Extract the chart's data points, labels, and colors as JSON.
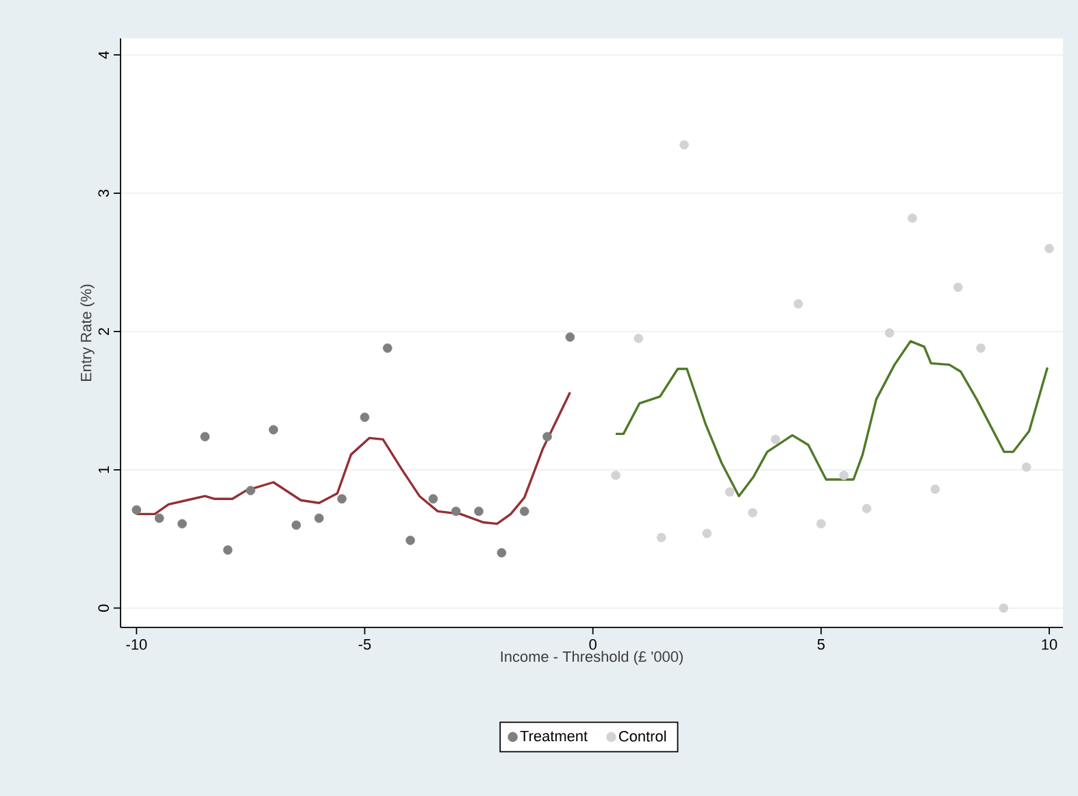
{
  "chart_data": {
    "type": "scatter",
    "xlabel": "Income - Threshold (£ '000)",
    "ylabel": "Entry Rate (%)",
    "xlim": [
      -10.35,
      10.3
    ],
    "ylim": [
      -0.14,
      4.12
    ],
    "xticks": [
      -10,
      -5,
      0,
      5,
      10
    ],
    "yticks": [
      0,
      1,
      2,
      3,
      4
    ],
    "grid": "y",
    "legend": "bottom",
    "series": [
      {
        "name": "Treatment",
        "marker": "circle",
        "color": "#7f7f7f",
        "x": [
          -10,
          -9.5,
          -9,
          -8.5,
          -8,
          -7.5,
          -7,
          -6.5,
          -6,
          -5.5,
          -5,
          -4.5,
          -4,
          -3.5,
          -3,
          -2.5,
          -2,
          -1.5,
          -1,
          -0.5
        ],
        "values": [
          0.71,
          0.65,
          0.61,
          1.24,
          0.42,
          0.85,
          1.29,
          0.6,
          0.65,
          0.79,
          1.38,
          1.88,
          0.49,
          0.79,
          0.7,
          0.7,
          0.4,
          0.7,
          1.24,
          1.96
        ]
      },
      {
        "name": "Control",
        "marker": "circle",
        "color": "#d3d3d3",
        "x": [
          0.5,
          1,
          1.5,
          2,
          2.5,
          3,
          3.5,
          4,
          4.5,
          5,
          5.5,
          6,
          6.5,
          7,
          7.5,
          8,
          8.5,
          9,
          9.5,
          10
        ],
        "values": [
          0.96,
          1.95,
          0.51,
          3.35,
          0.54,
          0.84,
          0.69,
          1.22,
          2.2,
          0.61,
          0.96,
          0.72,
          1.99,
          2.82,
          0.86,
          2.32,
          1.88,
          0,
          1.02,
          2.6
        ]
      },
      {
        "type": "line",
        "marker": "none",
        "color": "#943034",
        "x": [
          -10,
          -9.6,
          -9.3,
          -8.9,
          -8.5,
          -8.3,
          -7.9,
          -7.6,
          -7,
          -6.4,
          -6,
          -5.6,
          -5.3,
          -4.9,
          -4.6,
          -4.2,
          -3.8,
          -3.4,
          -2.9,
          -2.4,
          -2.1,
          -1.8,
          -1.5,
          -1.1,
          -0.5
        ],
        "values": [
          0.68,
          0.68,
          0.75,
          0.78,
          0.81,
          0.79,
          0.79,
          0.85,
          0.91,
          0.78,
          0.76,
          0.83,
          1.11,
          1.23,
          1.22,
          1.01,
          0.81,
          0.7,
          0.68,
          0.62,
          0.61,
          0.68,
          0.8,
          1.15,
          1.56
        ]
      },
      {
        "type": "line",
        "marker": "none",
        "color": "#4f7a28",
        "x": [
          0.5,
          0.67,
          1.02,
          1.47,
          1.86,
          2.06,
          2.47,
          2.82,
          3.2,
          3.52,
          3.82,
          4.37,
          4.72,
          5.11,
          5.71,
          5.91,
          6.21,
          6.61,
          6.96,
          7.26,
          7.41,
          7.81,
          8.06,
          8.41,
          9.01,
          9.21,
          9.56,
          9.96
        ],
        "values": [
          1.26,
          1.26,
          1.48,
          1.53,
          1.73,
          1.73,
          1.33,
          1.05,
          0.81,
          0.95,
          1.13,
          1.25,
          1.18,
          0.93,
          0.93,
          1.11,
          1.51,
          1.76,
          1.93,
          1.89,
          1.77,
          1.76,
          1.71,
          1.51,
          1.13,
          1.13,
          1.28,
          1.74
        ]
      }
    ]
  }
}
